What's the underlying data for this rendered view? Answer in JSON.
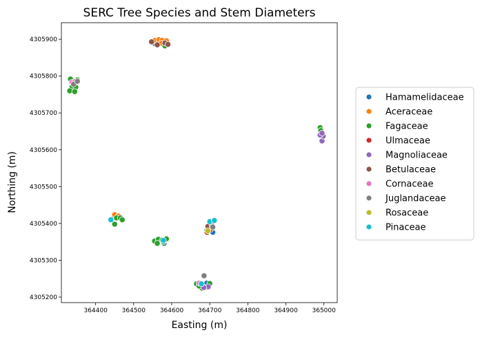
{
  "chart_data": {
    "type": "scatter",
    "title": "SERC Tree Species and Stem Diameters",
    "xlabel": "Easting (m)",
    "ylabel": "Northing (m)",
    "xlim": [
      364310,
      365035
    ],
    "ylim": [
      4305185,
      4305945
    ],
    "x_ticks": [
      364400,
      364500,
      364600,
      364700,
      364800,
      364900,
      365000
    ],
    "y_ticks": [
      4305200,
      4305300,
      4305400,
      4305500,
      4305600,
      4305700,
      4305800,
      4305900
    ],
    "grid": false,
    "legend_position": "right",
    "series": [
      {
        "name": "Hamamelidaceae",
        "color": "#1f77b4",
        "points": [
          [
            364556,
            4305888
          ],
          [
            364570,
            4305892
          ],
          [
            364580,
            4305346
          ],
          [
            364570,
            4305355
          ],
          [
            364698,
            4305380
          ],
          [
            364708,
            4305376
          ],
          [
            364682,
            4305232
          ],
          [
            364692,
            4305238
          ],
          [
            364448,
            4305415
          ]
        ]
      },
      {
        "name": "Aceraceae",
        "color": "#ff7f0e",
        "points": [
          [
            364556,
            4305897
          ],
          [
            364566,
            4305899
          ],
          [
            364575,
            4305897
          ],
          [
            364586,
            4305896
          ],
          [
            364572,
            4305889
          ],
          [
            364450,
            4305424
          ],
          [
            364460,
            4305420
          ]
        ]
      },
      {
        "name": "Fagaceae",
        "color": "#2ca02c",
        "points": [
          [
            364334,
            4305792
          ],
          [
            364352,
            4305790
          ],
          [
            364338,
            4305772
          ],
          [
            364348,
            4305770
          ],
          [
            364332,
            4305760
          ],
          [
            364345,
            4305758
          ],
          [
            364340,
            4305780
          ],
          [
            364555,
            4305352
          ],
          [
            364565,
            4305357
          ],
          [
            364578,
            4305350
          ],
          [
            364586,
            4305358
          ],
          [
            364562,
            4305346
          ],
          [
            364575,
            4305355
          ],
          [
            364450,
            4305398
          ],
          [
            364455,
            4305415
          ],
          [
            364465,
            4305415
          ],
          [
            364470,
            4305410
          ],
          [
            364665,
            4305236
          ],
          [
            364680,
            4305224
          ],
          [
            364700,
            4305237
          ],
          [
            364688,
            4305226
          ],
          [
            364672,
            4305230
          ],
          [
            364692,
            4305380
          ],
          [
            364704,
            4305388
          ],
          [
            364990,
            4305660
          ],
          [
            364992,
            4305652
          ],
          [
            364582,
            4305882
          ]
        ]
      },
      {
        "name": "Ulmaceae",
        "color": "#d62728",
        "points": [
          [
            364693,
            4305376
          ],
          [
            364702,
            4305384
          ]
        ]
      },
      {
        "name": "Magnoliaceae",
        "color": "#9467bd",
        "points": [
          [
            364995,
            4305624
          ],
          [
            364998,
            4305637
          ],
          [
            364990,
            4305640
          ],
          [
            364995,
            4305645
          ],
          [
            364696,
            4305228
          ],
          [
            364684,
            4305226
          ]
        ]
      },
      {
        "name": "Betulaceae",
        "color": "#8c564b",
        "points": [
          [
            364562,
            4305885
          ],
          [
            364582,
            4305890
          ],
          [
            364590,
            4305886
          ],
          [
            364547,
            4305893
          ],
          [
            364695,
            4305392
          ]
        ]
      },
      {
        "name": "Cornaceae",
        "color": "#e377c2",
        "points": [
          [
            364338,
            4305783
          ],
          [
            364346,
            4305786
          ],
          [
            364672,
            4305238
          ]
        ]
      },
      {
        "name": "Juglandaceae",
        "color": "#7f7f7f",
        "points": [
          [
            364685,
            4305258
          ],
          [
            364706,
            4305394
          ],
          [
            364708,
            4305390
          ],
          [
            364342,
            4305778
          ],
          [
            364352,
            4305786
          ]
        ]
      },
      {
        "name": "Rosaceae",
        "color": "#bcbd22",
        "points": [
          [
            364695,
            4305380
          ]
        ]
      },
      {
        "name": "Pinaceae",
        "color": "#17becf",
        "points": [
          [
            364700,
            4305405
          ],
          [
            364712,
            4305408
          ],
          [
            364440,
            4305410
          ],
          [
            364578,
            4305354
          ],
          [
            364678,
            4305236
          ]
        ]
      }
    ]
  }
}
